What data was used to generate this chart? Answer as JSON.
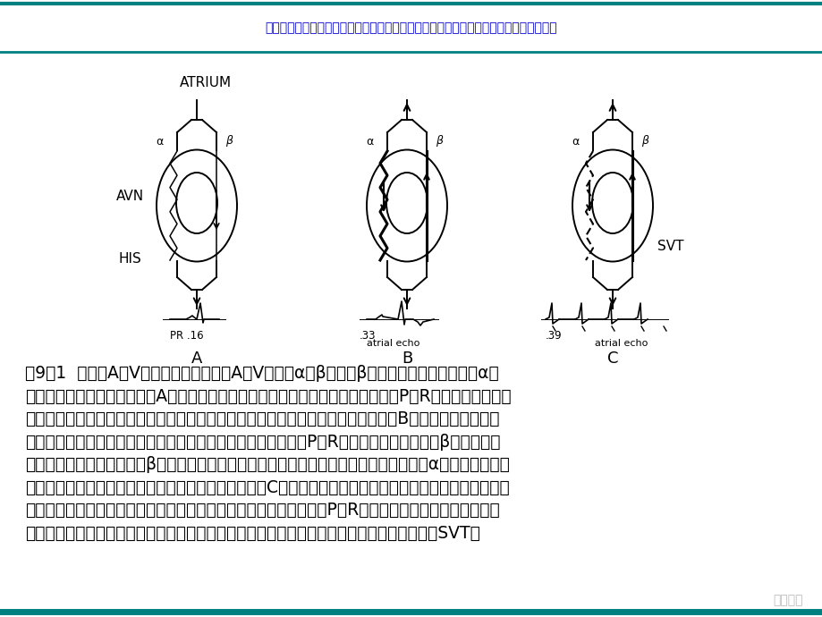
{
  "header_text": "文档仅供参考，不能作为科学依据，请勿模仿；如有不当之处，请联系网站或本人删除。",
  "header_color": "#0000cc",
  "header_bar_color": "#008080",
  "background_color": "#ffffff",
  "diagram_labels": {
    "atrium": "ATRIUM",
    "avn": "AVN",
    "his": "HIS",
    "svt": "SVT",
    "A": "A",
    "B": "B",
    "C": "C",
    "PR": "PR .16",
    "B_val": ".33",
    "C_val": ".39",
    "atrial_echo": "atrial echo"
  },
  "body_text_lines": [
    "图9－1  典型的A－V结折返的机制。图示A－V结分为α和β通道。β通道传导快，不应期长；α通",
    "道传导慢，不应期相对较短。A：窦性心律时，激动从快通道传导，产生一个正常的P－R间期。激动也同时",
    "向慢通道传导。由于它遇到从快通道传导激动的不应期，故不能传向希氏束和心室。B：一个房性早搏阻滞",
    "在快通道而经慢通道传导，除极希氏速和心室。产生一个较长的P－R间期。由于传导缓慢，β通道有时间",
    "恢复应激，激动逆向性进入β通道回到心房，产生一个房性回波（箭头所指）。激动再回到α通道，由于它没",
    "有恢复应激，故仅产生一个回波。激动在慢通道受阻。C：一个更加提前的早搏，也在快通道发生阻滞。但此",
    "时激动在除极希氏速和心室上之前。传导更加缓慢，产生一个更长的P－R间期。由于传导进一步延缓，不",
    "仅快通道有时间恢复应激，产生单个回波，而且慢通道也能恢复以允许重复的顺向折返，导致SVT。"
  ],
  "text_color": "#000000",
  "body_fontsize": 13.5,
  "fig_width": 9.2,
  "fig_height": 6.9,
  "dpi": 100
}
